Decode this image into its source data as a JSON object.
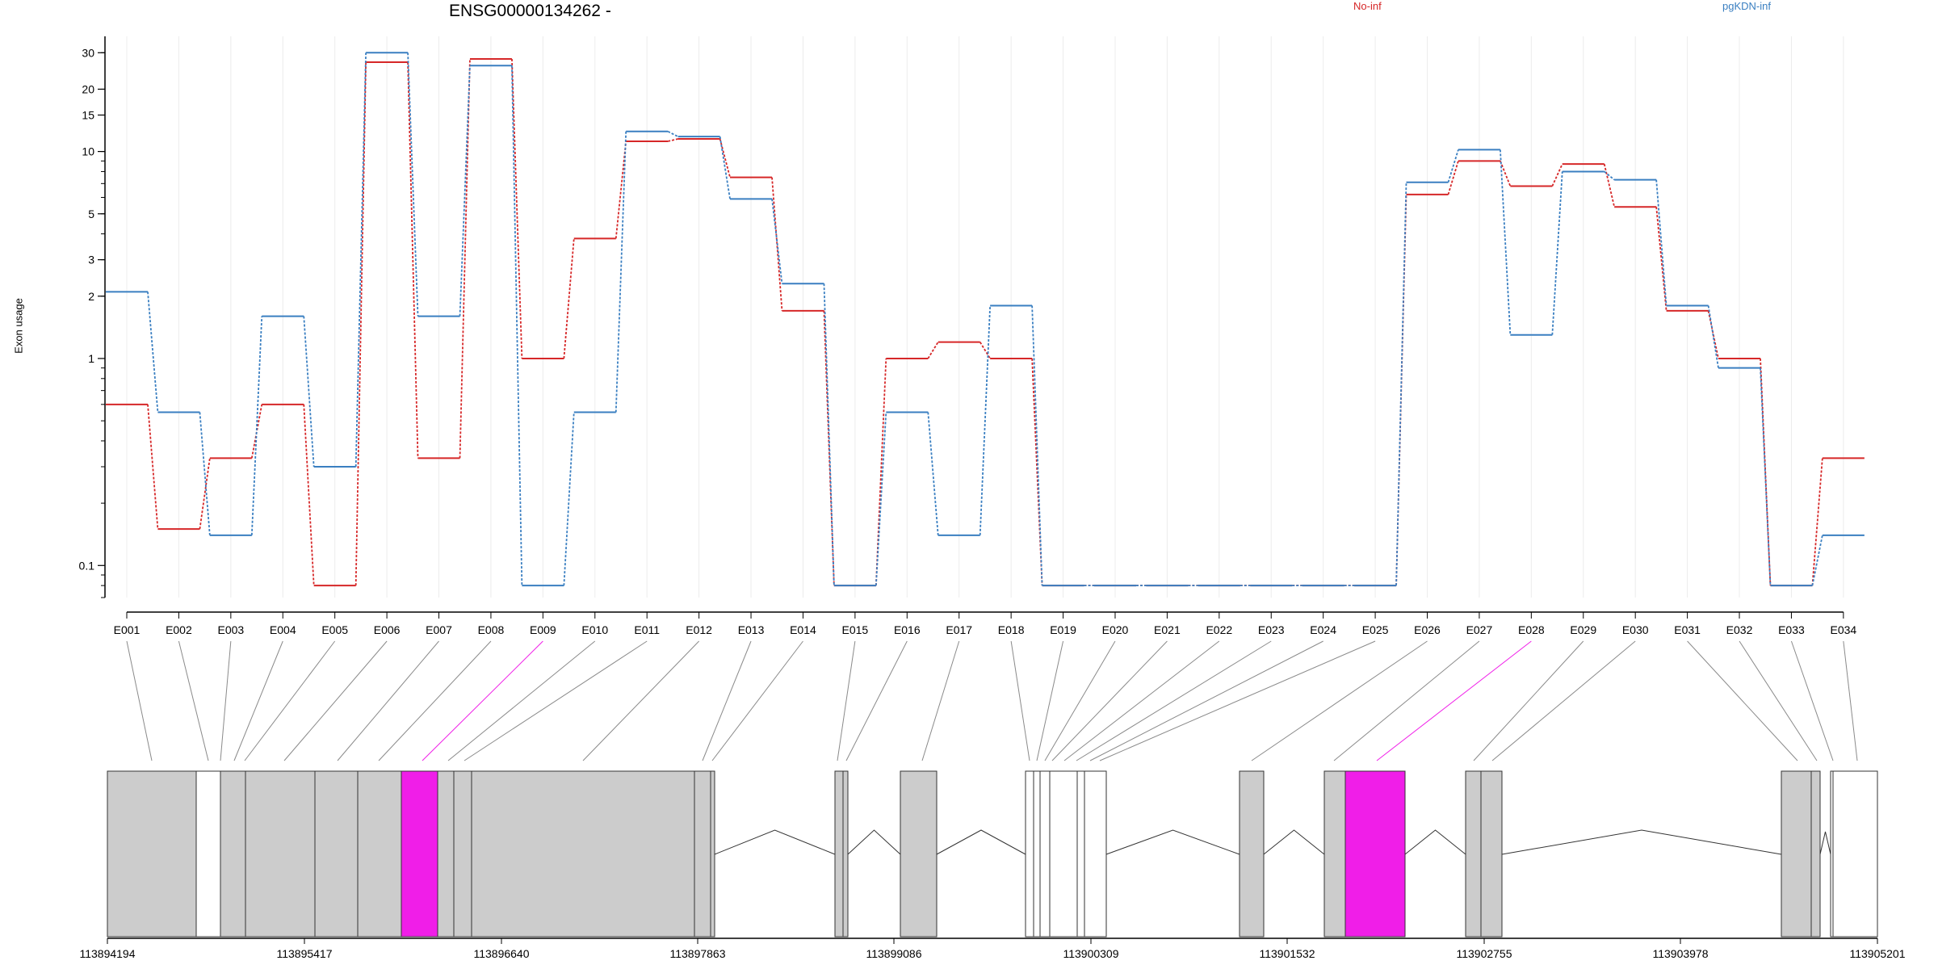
{
  "header": {
    "title": "ENSG00000134262 -",
    "legend": [
      {
        "label": "No-inf",
        "color": "#d62728"
      },
      {
        "label": "pgKDN-inf",
        "color": "#3a7fc1"
      }
    ]
  },
  "chart_data": {
    "type": "line",
    "ylabel": "Exon usage",
    "y_scale": "log",
    "ylim": [
      0.07,
      36
    ],
    "yticks": [
      0.1,
      1,
      2,
      3,
      5,
      10,
      15,
      20,
      30
    ],
    "ytick_labels": [
      "0.1",
      "1",
      "2",
      "3",
      "5",
      "10",
      "15",
      "20",
      "30"
    ],
    "categories": [
      "E001",
      "E002",
      "E003",
      "E004",
      "E005",
      "E006",
      "E007",
      "E008",
      "E009",
      "E010",
      "E011",
      "E012",
      "E013",
      "E014",
      "E015",
      "E016",
      "E017",
      "E018",
      "E019",
      "E020",
      "E021",
      "E022",
      "E023",
      "E024",
      "E025",
      "E026",
      "E027",
      "E028",
      "E029",
      "E030",
      "E031",
      "E032",
      "E033",
      "E034"
    ],
    "series": [
      {
        "name": "No-inf",
        "color": "#d62728",
        "values": [
          0.6,
          0.15,
          0.33,
          0.6,
          0.08,
          27,
          0.33,
          28,
          1.0,
          3.8,
          11.2,
          11.5,
          7.5,
          1.7,
          0.08,
          1.0,
          1.2,
          1.0,
          0.08,
          0.08,
          0.08,
          0.08,
          0.08,
          0.08,
          0.08,
          6.2,
          9.0,
          6.8,
          8.7,
          5.4,
          1.7,
          1.0,
          0.08,
          0.33
        ]
      },
      {
        "name": "pgKDN-inf",
        "color": "#3a7fc1",
        "values": [
          2.1,
          0.55,
          0.14,
          1.6,
          0.3,
          30,
          1.6,
          26,
          0.08,
          0.55,
          12.5,
          11.8,
          5.9,
          2.3,
          0.08,
          0.55,
          0.14,
          1.8,
          0.08,
          0.08,
          0.08,
          0.08,
          0.08,
          0.08,
          0.08,
          7.1,
          10.2,
          1.3,
          8.0,
          7.3,
          1.8,
          0.9,
          0.08,
          0.14
        ]
      }
    ]
  },
  "gene_model": {
    "genomic_ticks": [
      "113894194",
      "113895417",
      "113896640",
      "113897863",
      "113899086",
      "113900309",
      "113901532",
      "113902755",
      "113903978",
      "113905201"
    ],
    "highlight_color": "#f01ee8",
    "highlighted_exons": [
      "E009",
      "E028"
    ]
  }
}
